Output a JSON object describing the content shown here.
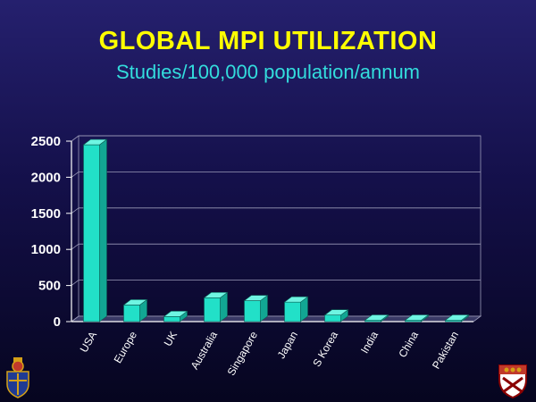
{
  "header": {
    "title": "GLOBAL MPI UTILIZATION",
    "subtitle": "Studies/100,000 population/annum"
  },
  "colors": {
    "title": "#ffff00",
    "subtitle": "#33dddd",
    "bar_front": "#22e0c8",
    "bar_side": "#12a693",
    "bar_top": "#6ff5e2",
    "axis": "#ffffff"
  },
  "logos": {
    "left": "crest-icon",
    "right": "coat-of-arms-icon"
  },
  "chart_data": {
    "type": "bar",
    "title": "GLOBAL MPI UTILIZATION",
    "subtitle": "Studies/100,000 population/annum",
    "categories": [
      "USA",
      "Europe",
      "UK",
      "Australia",
      "Singapore",
      "Japan",
      "S Korea",
      "India",
      "China",
      "Pakistan"
    ],
    "values": [
      2450,
      230,
      70,
      330,
      290,
      270,
      90,
      15,
      5,
      3
    ],
    "ylim": [
      0,
      2500
    ],
    "yticks": [
      0,
      500,
      1000,
      1500,
      2000,
      2500
    ],
    "xlabel": "",
    "ylabel": "",
    "grid": true,
    "style": "3d-bar"
  }
}
